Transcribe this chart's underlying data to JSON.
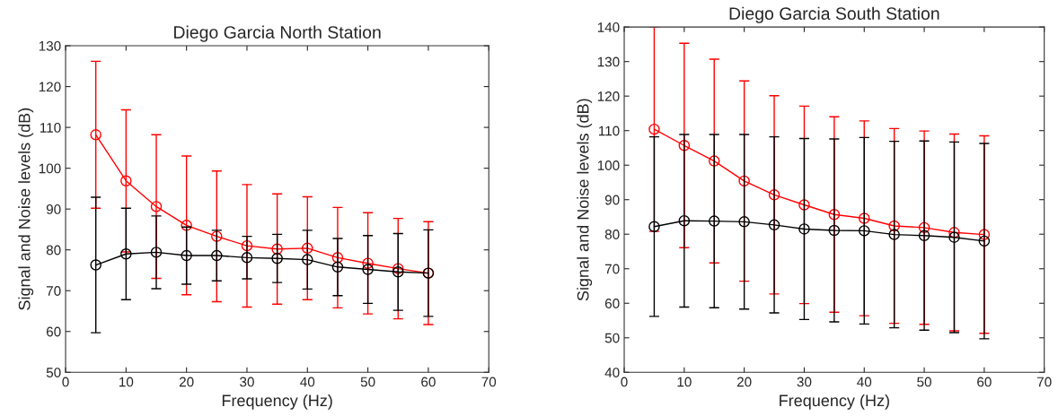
{
  "chart_data": [
    {
      "type": "line",
      "title": "Diego Garcia North Station",
      "xlabel": "Frequency (Hz)",
      "ylabel": "Signal and Noise levels (dB)",
      "x": [
        5,
        10,
        15,
        20,
        25,
        30,
        35,
        40,
        45,
        50,
        55,
        60
      ],
      "xlim": [
        0,
        70
      ],
      "xticks": [
        0,
        10,
        20,
        30,
        40,
        50,
        60,
        70
      ],
      "ylim": [
        50,
        130
      ],
      "yticks": [
        50,
        60,
        70,
        80,
        90,
        100,
        110,
        120,
        130
      ],
      "marker": "circle",
      "grid": false,
      "legend": false,
      "series": [
        {
          "color": "#ff0000",
          "values": [
            108.2,
            96.9,
            90.6,
            86,
            83.3,
            81,
            80.2,
            80.4,
            78.1,
            76.7,
            75.4,
            74.3
          ],
          "errors": [
            18,
            17.4,
            17.6,
            17,
            16,
            15,
            13.5,
            12.6,
            12.3,
            12.4,
            12.3,
            12.6
          ]
        },
        {
          "color": "#000000",
          "values": [
            76.3,
            79,
            79.4,
            78.6,
            78.6,
            78.1,
            77.9,
            77.6,
            75.8,
            75.2,
            74.6,
            74.3
          ],
          "errors": [
            16.6,
            11.2,
            8.9,
            7,
            6.2,
            5.2,
            5.9,
            7.2,
            7,
            8.3,
            9.4,
            10.6
          ]
        }
      ]
    },
    {
      "type": "line",
      "title": "Diego Garcia South Station",
      "xlabel": "Frequency (Hz)",
      "ylabel": "Signal and Noise levels (dB)",
      "x": [
        5,
        10,
        15,
        20,
        25,
        30,
        35,
        40,
        45,
        50,
        55,
        60
      ],
      "xlim": [
        0,
        70
      ],
      "xticks": [
        0,
        10,
        20,
        30,
        40,
        50,
        60,
        70
      ],
      "ylim": [
        40,
        140
      ],
      "yticks": [
        40,
        50,
        60,
        70,
        80,
        90,
        100,
        110,
        120,
        130,
        140
      ],
      "marker": "circle",
      "grid": false,
      "legend": false,
      "series": [
        {
          "color": "#ff0000",
          "values": [
            110.4,
            105.7,
            101.2,
            95.4,
            91.4,
            88.5,
            85.7,
            84.6,
            82.4,
            81.9,
            80.5,
            79.9
          ],
          "errors": [
            29.6,
            29.6,
            29.5,
            29,
            28.7,
            28.6,
            28.3,
            28.2,
            28.2,
            28,
            28.5,
            28.6
          ]
        },
        {
          "color": "#000000",
          "values": [
            82.2,
            83.9,
            83.8,
            83.6,
            82.7,
            81.5,
            81.1,
            81,
            79.9,
            79.6,
            79.1,
            78
          ],
          "errors": [
            26,
            25,
            25.1,
            25.3,
            25.5,
            26.2,
            26.5,
            27,
            27,
            27.4,
            27.6,
            28.3
          ]
        }
      ]
    }
  ]
}
